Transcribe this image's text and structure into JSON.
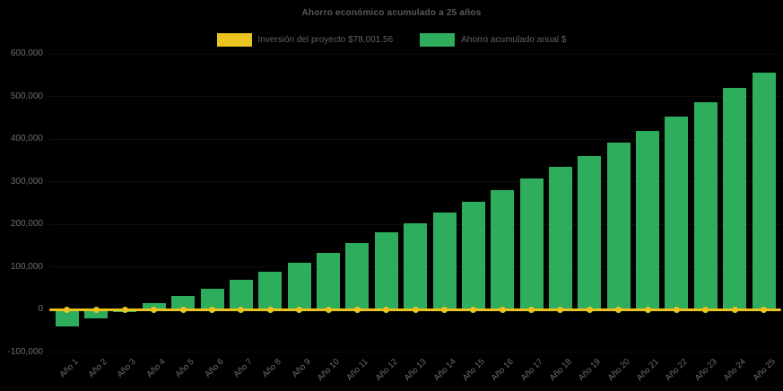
{
  "window": {
    "background_color": "#000000"
  },
  "chart_data": {
    "type": "combo-bar-line",
    "title": "Ahorro económico acumulado a 25 años",
    "legend_position": "top",
    "grid": false,
    "categories": [
      "Año 1",
      "Año 2",
      "Año 3",
      "Año 4",
      "Año 5",
      "Año 6",
      "Año 7",
      "Año 8",
      "Año 9",
      "Año 10",
      "Año 11",
      "Año 12",
      "Año 13",
      "Año 14",
      "Año 15",
      "Año 16",
      "Año 17",
      "Año 18",
      "Año 19",
      "Año 20",
      "Año 21",
      "Año 22",
      "Año 23",
      "Año 24",
      "Año 25"
    ],
    "series": [
      {
        "name": "Inversión del proyecto $78,001.56",
        "type": "line",
        "color": "#E9C41F",
        "marker": "dot",
        "values": [
          0,
          0,
          0,
          0,
          0,
          0,
          0,
          0,
          0,
          0,
          0,
          0,
          0,
          0,
          0,
          0,
          0,
          0,
          0,
          0,
          0,
          0,
          0,
          0,
          0
        ]
      },
      {
        "name": "Ahorro acumulado anual $",
        "type": "bar",
        "color": "#2EAD5C",
        "values": [
          -40000,
          -20000,
          -7000,
          14000,
          32000,
          48000,
          69000,
          89000,
          110000,
          133000,
          156000,
          181000,
          203000,
          228000,
          253000,
          280000,
          308000,
          335000,
          361000,
          392000,
          420000,
          452000,
          486000,
          520000,
          555000
        ]
      }
    ],
    "y_axis": {
      "min": -100000,
      "max": 600000,
      "tick_interval": 100000,
      "tick_labels": [
        "600,000",
        "500,000",
        "400,000",
        "300,000",
        "200,000",
        "100,000",
        "0",
        "-100,000"
      ],
      "tick_values": [
        600000,
        500000,
        400000,
        300000,
        200000,
        100000,
        0,
        -100000
      ],
      "label_color": "#6e6e6e"
    },
    "x_axis": {
      "label_color": "#6e6e6e",
      "label_rotation_deg": -45
    },
    "title_color": "#595959",
    "legend_text_color": "#626262"
  }
}
